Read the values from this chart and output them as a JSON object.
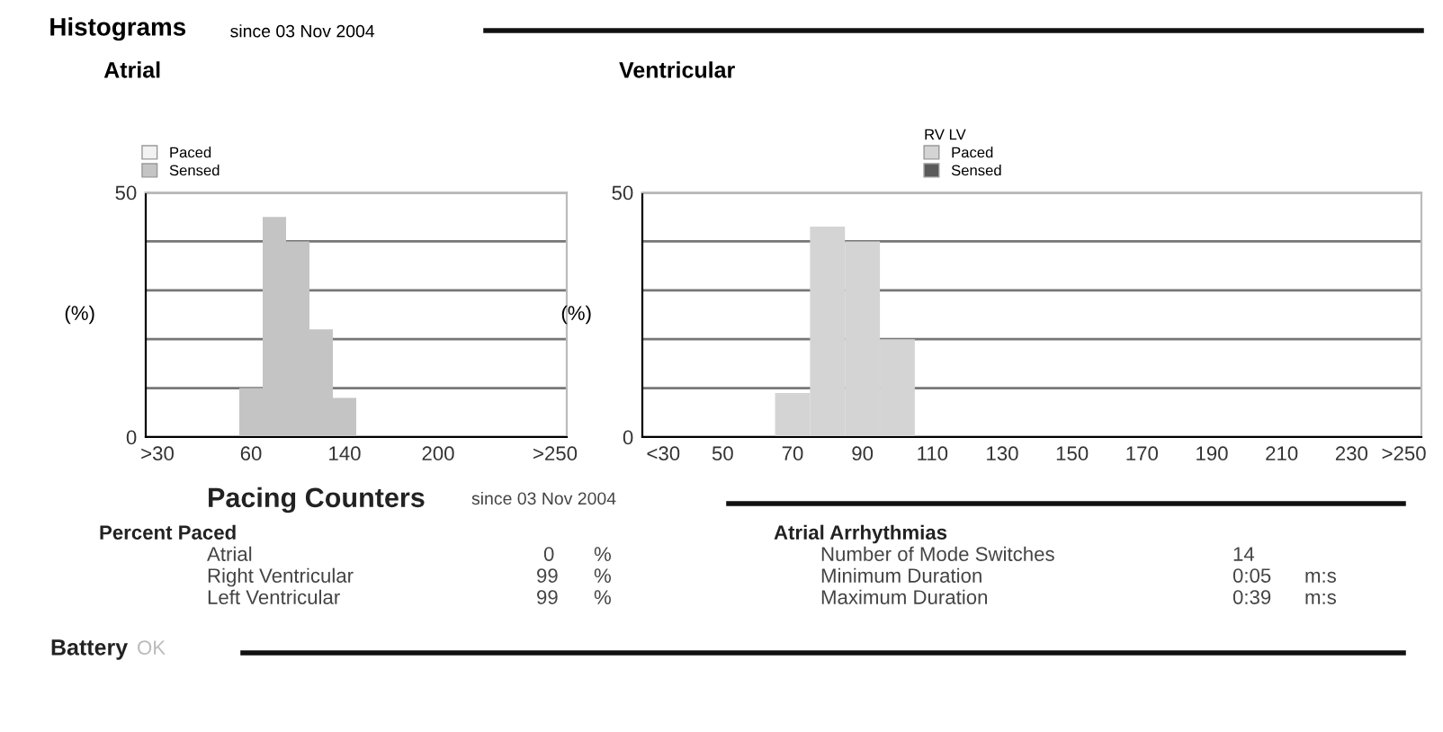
{
  "chart_data": [
    {
      "type": "bar",
      "title": "Atrial",
      "ylabel": "(%)",
      "annotations": [
        "Histograms",
        "since 03 Nov 2004"
      ],
      "categories": [
        ">30",
        null,
        null,
        null,
        "60",
        null,
        null,
        null,
        "140",
        null,
        null,
        null,
        "200",
        null,
        null,
        null,
        null,
        ">250"
      ],
      "series": [
        {
          "name": "Paced",
          "color": "#f2f2f2",
          "values": [
            0,
            0,
            0,
            0,
            0,
            0,
            0,
            0,
            0,
            0,
            0,
            0,
            0,
            0,
            0,
            0,
            0,
            0
          ]
        },
        {
          "name": "Sensed",
          "color": "#c4c4c4",
          "values": [
            0,
            0,
            0,
            0,
            10,
            45,
            40,
            22,
            8,
            0,
            0,
            0,
            0,
            0,
            0,
            0,
            0,
            0
          ]
        }
      ],
      "ylim": [
        0,
        50
      ],
      "yticks": [
        0,
        {
          "value": 10,
          "label": null
        },
        {
          "value": 20,
          "label": null
        },
        {
          "value": 30,
          "label": null
        },
        {
          "value": 40,
          "label": null
        },
        50
      ],
      "grid": "y",
      "legend": "top left"
    },
    {
      "type": "bar",
      "title": "Ventricular",
      "ylabel": "(%)",
      "legend_title": "RV LV",
      "x": [
        70,
        80,
        90,
        100
      ],
      "series": [
        {
          "name": "Paced",
          "color": "#d4d4d4",
          "values": [
            9,
            43,
            40,
            20
          ]
        },
        {
          "name": "Sensed",
          "color": "#5a5a5a",
          "values": [
            0,
            0,
            0,
            0
          ]
        }
      ],
      "xlim": [
        27,
        250
      ],
      "xticks": [
        {
          "value": 33,
          "label": "<30"
        },
        50,
        70,
        90,
        110,
        130,
        150,
        170,
        190,
        210,
        230,
        {
          "value": 245,
          "label": ">250"
        }
      ],
      "ylim": [
        0,
        50
      ],
      "yticks": [
        0,
        {
          "value": 10,
          "label": null
        },
        {
          "value": 20,
          "label": null
        },
        {
          "value": 30,
          "label": null
        },
        {
          "value": 40,
          "label": null
        },
        50
      ],
      "grid": "y",
      "legend": "top"
    },
    {
      "type": "other",
      "annotations": [
        "Pacing Counters",
        "since 03 Nov 2004",
        "Percent Paced",
        "Atrial",
        "0",
        "%",
        "Right Ventricular",
        "99",
        "%",
        "Left Ventricular",
        "99",
        "%",
        "Atrial Arrhythmias",
        "Number of Mode Switches",
        "14",
        "Minimum Duration",
        "0:05",
        "m:s",
        "Maximum Duration",
        "0:39",
        "m:s",
        "Battery",
        "OK"
      ]
    }
  ]
}
